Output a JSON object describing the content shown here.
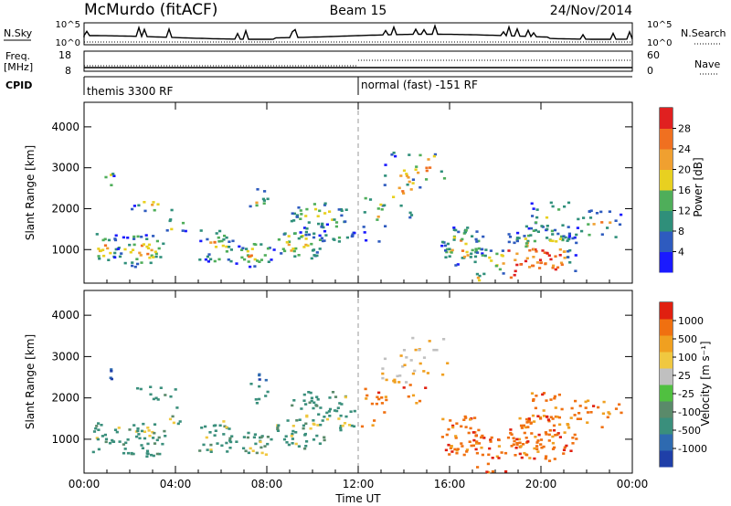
{
  "header": {
    "station": "McMurdo (fitACF)",
    "beam": "Beam 15",
    "date": "24/Nov/2014"
  },
  "nsky_panel": {
    "left_label": "N.Sky",
    "right_label": "N.Search",
    "left_ticks": [
      "10^5",
      "10^0"
    ],
    "right_ticks": [
      "10^5",
      "10^0"
    ],
    "right_legend_style": "dotted"
  },
  "freq_panel": {
    "left_label_line1": "Freq.",
    "left_label_line2": "[MHz]",
    "right_label": "Nave",
    "left_ticks": [
      "18",
      "8"
    ],
    "right_ticks": [
      "60",
      "0"
    ],
    "right_legend_style": "dotted"
  },
  "cpid_panel": {
    "label": "CPID",
    "segments": [
      {
        "name": "themis 3300 RF",
        "start_hour": 0
      },
      {
        "name": "normal (fast) -151 RF",
        "start_hour": 12
      }
    ]
  },
  "chart_data": [
    {
      "type": "heatmap",
      "name": "power",
      "ylabel": "Slant Range [km]",
      "ylim": [
        180,
        4600
      ],
      "yticks": [
        "1000",
        "2000",
        "3000",
        "4000"
      ],
      "xlim": [
        0,
        24
      ],
      "xticks": [
        "00:00",
        "04:00",
        "08:00",
        "12:00",
        "16:00",
        "20:00",
        "00:00"
      ],
      "xlabel": "",
      "divider_hour": 12,
      "colorbar": {
        "label": "Power [dB]",
        "range": [
          0,
          32
        ],
        "ticks": [
          "4",
          "8",
          "12",
          "16",
          "20",
          "24",
          "28"
        ],
        "colors": [
          "#1a1aff",
          "#2e5bbf",
          "#2f8f7a",
          "#4fae5a",
          "#e8d020",
          "#f0a030",
          "#f07020",
          "#e02020"
        ]
      }
    },
    {
      "type": "heatmap",
      "name": "velocity",
      "ylabel": "Slant Range [km]",
      "ylim": [
        180,
        4600
      ],
      "yticks": [
        "1000",
        "2000",
        "3000",
        "4000"
      ],
      "xlim": [
        0,
        24
      ],
      "xticks": [
        "00:00",
        "04:00",
        "08:00",
        "12:00",
        "16:00",
        "20:00",
        "00:00"
      ],
      "xlabel": "Time UT",
      "divider_hour": 12,
      "colorbar": {
        "label": "Velocity [m s⁻¹]",
        "ticks": [
          "1000",
          "500",
          "100",
          "25",
          "-25",
          "-100",
          "-500",
          "-1000"
        ],
        "colors": [
          "#1f3fa8",
          "#2e6ab0",
          "#3a8f7c",
          "#5a8a6a",
          "#50c040",
          "#c0c0c0",
          "#f0c840",
          "#f0a020",
          "#f07010",
          "#e02010"
        ]
      }
    }
  ]
}
